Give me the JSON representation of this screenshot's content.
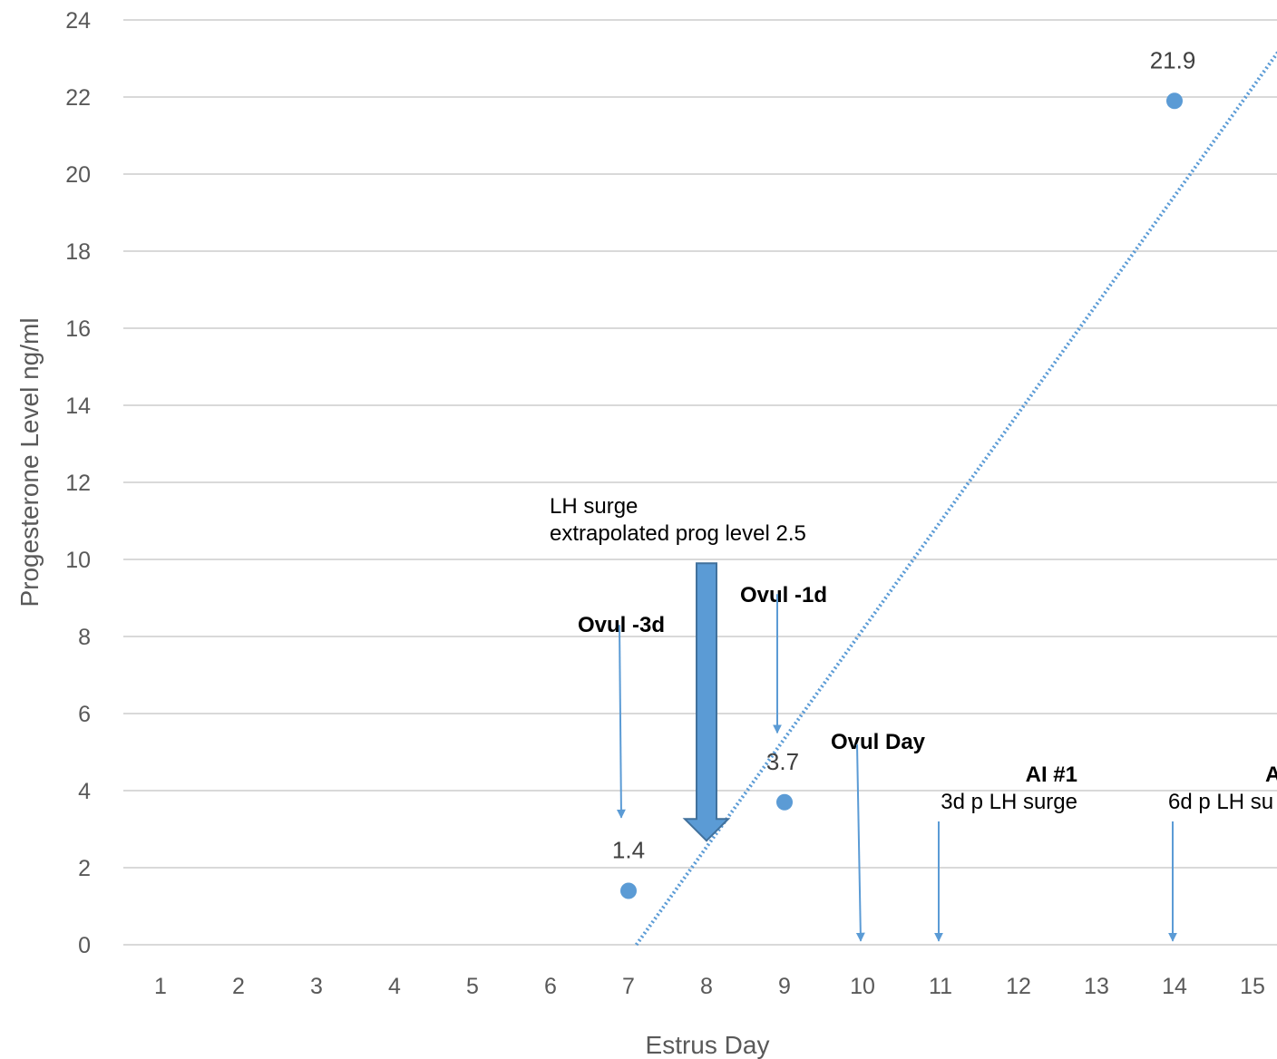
{
  "chart_data": {
    "type": "scatter",
    "xlabel": "Estrus Day",
    "ylabel": "Progesterone Level ng/ml",
    "xlim": [
      0.5,
      15.5
    ],
    "ylim": [
      0,
      24
    ],
    "x_ticks": [
      "1",
      "2",
      "3",
      "4",
      "5",
      "6",
      "7",
      "8",
      "9",
      "10",
      "11",
      "12",
      "13",
      "14",
      "15"
    ],
    "y_ticks": [
      "0",
      "2",
      "4",
      "6",
      "8",
      "10",
      "12",
      "14",
      "16",
      "18",
      "20",
      "22",
      "24"
    ],
    "grid": "horizontal",
    "points": [
      {
        "x": 7,
        "y": 1.4,
        "label": "1.4"
      },
      {
        "x": 9,
        "y": 3.7,
        "label": "3.7"
      },
      {
        "x": 14,
        "y": 21.9,
        "label": "21.9"
      }
    ],
    "trendline": {
      "style": "dotted",
      "x0": 7.1,
      "y0": 0,
      "x1": 15.8,
      "y1": 24.5
    },
    "annotations": [
      {
        "lines": [
          "LH surge",
          "extrapolated prog level 2.5"
        ],
        "bold": false,
        "x": 8,
        "y_from": 9.9,
        "y_to": 2.7,
        "arrow": "block"
      },
      {
        "lines": [
          "Ovul -3d"
        ],
        "bold": false,
        "bold_lines": [
          0
        ],
        "x": 7,
        "y_from": 8.3,
        "y_to": 3.3,
        "arrow": "line"
      },
      {
        "lines": [
          "Ovul -1d"
        ],
        "bold_lines": [
          0
        ],
        "x": 9,
        "y_from": 9.1,
        "y_to": 5.5,
        "arrow": "line"
      },
      {
        "lines": [
          "Ovul Day"
        ],
        "bold_lines": [
          0
        ],
        "x": 10,
        "y_from": 5.2,
        "y_to": 0.1,
        "arrow": "line"
      },
      {
        "lines": [
          "AI #1",
          "3d p LH surge"
        ],
        "bold_lines": [
          0
        ],
        "x": 11,
        "y_from": 3.2,
        "y_to": 0.1,
        "arrow": "line"
      },
      {
        "lines": [
          "A",
          "6d p LH su"
        ],
        "bold_lines": [
          0
        ],
        "x": 14,
        "y_from": 3.2,
        "y_to": 0.1,
        "arrow": "line"
      }
    ],
    "colors": {
      "marker": "#5b9bd5",
      "arrow": "#5b9bd5",
      "block_arrow_fill": "#5b9bd5",
      "block_arrow_stroke": "#41719c",
      "grid": "#d9d9d9",
      "tick_text": "#595959"
    }
  }
}
